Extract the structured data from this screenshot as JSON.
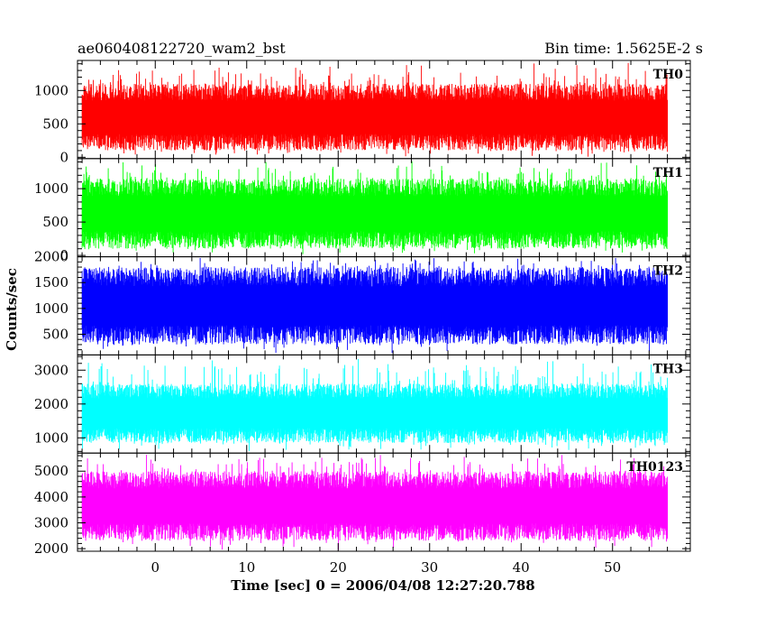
{
  "header": {
    "left_title": "ae060408122720_wam2_bst",
    "right_title": "Bin time: 1.5625E-2 s"
  },
  "chart_data": {
    "type": "line",
    "xlabel": "Time [sec] 0 = 2006/04/08 12:27:20.788",
    "ylabel": "Counts/sec",
    "xlim": [
      -8.5,
      58.5
    ],
    "x_ticks": [
      0,
      10,
      20,
      30,
      40,
      50
    ],
    "x_tick_labels": [
      "0",
      "10",
      "20",
      "30",
      "40",
      "50"
    ],
    "data_x_range": [
      -8,
      56
    ],
    "bin_time": 0.015625,
    "panels": [
      {
        "name": "TH0",
        "color": "#ff0000",
        "ylim": [
          -20,
          1450
        ],
        "y_ticks": [
          0,
          500,
          1000
        ],
        "y_tick_labels": [
          "0",
          "500",
          "1000"
        ],
        "typical_band": [
          100,
          1100
        ],
        "range": [
          0,
          1430
        ]
      },
      {
        "name": "TH1",
        "color": "#00ff00",
        "ylim": [
          -20,
          1450
        ],
        "y_ticks": [
          0,
          500,
          1000
        ],
        "y_tick_labels": [
          "0",
          "500",
          "1000"
        ],
        "typical_band": [
          100,
          1150
        ],
        "range": [
          0,
          1440
        ]
      },
      {
        "name": "TH2",
        "color": "#0000ff",
        "ylim": [
          100,
          2000
        ],
        "y_ticks": [
          500,
          1000,
          1500,
          2000
        ],
        "y_tick_labels": [
          "500",
          "1000",
          "1500",
          "2000"
        ],
        "typical_band": [
          300,
          1800
        ],
        "range": [
          120,
          2000
        ]
      },
      {
        "name": "TH3",
        "color": "#00ffff",
        "ylim": [
          550,
          3450
        ],
        "y_ticks": [
          1000,
          2000,
          3000
        ],
        "y_tick_labels": [
          "1000",
          "2000",
          "3000"
        ],
        "typical_band": [
          850,
          2600
        ],
        "range": [
          560,
          3400
        ]
      },
      {
        "name": "TH0123",
        "color": "#ff00ff",
        "ylim": [
          1900,
          5700
        ],
        "y_ticks": [
          2000,
          3000,
          4000,
          5000
        ],
        "y_tick_labels": [
          "2000",
          "3000",
          "4000",
          "5000"
        ],
        "typical_band": [
          2300,
          5000
        ],
        "range": [
          1920,
          5680
        ]
      }
    ]
  }
}
